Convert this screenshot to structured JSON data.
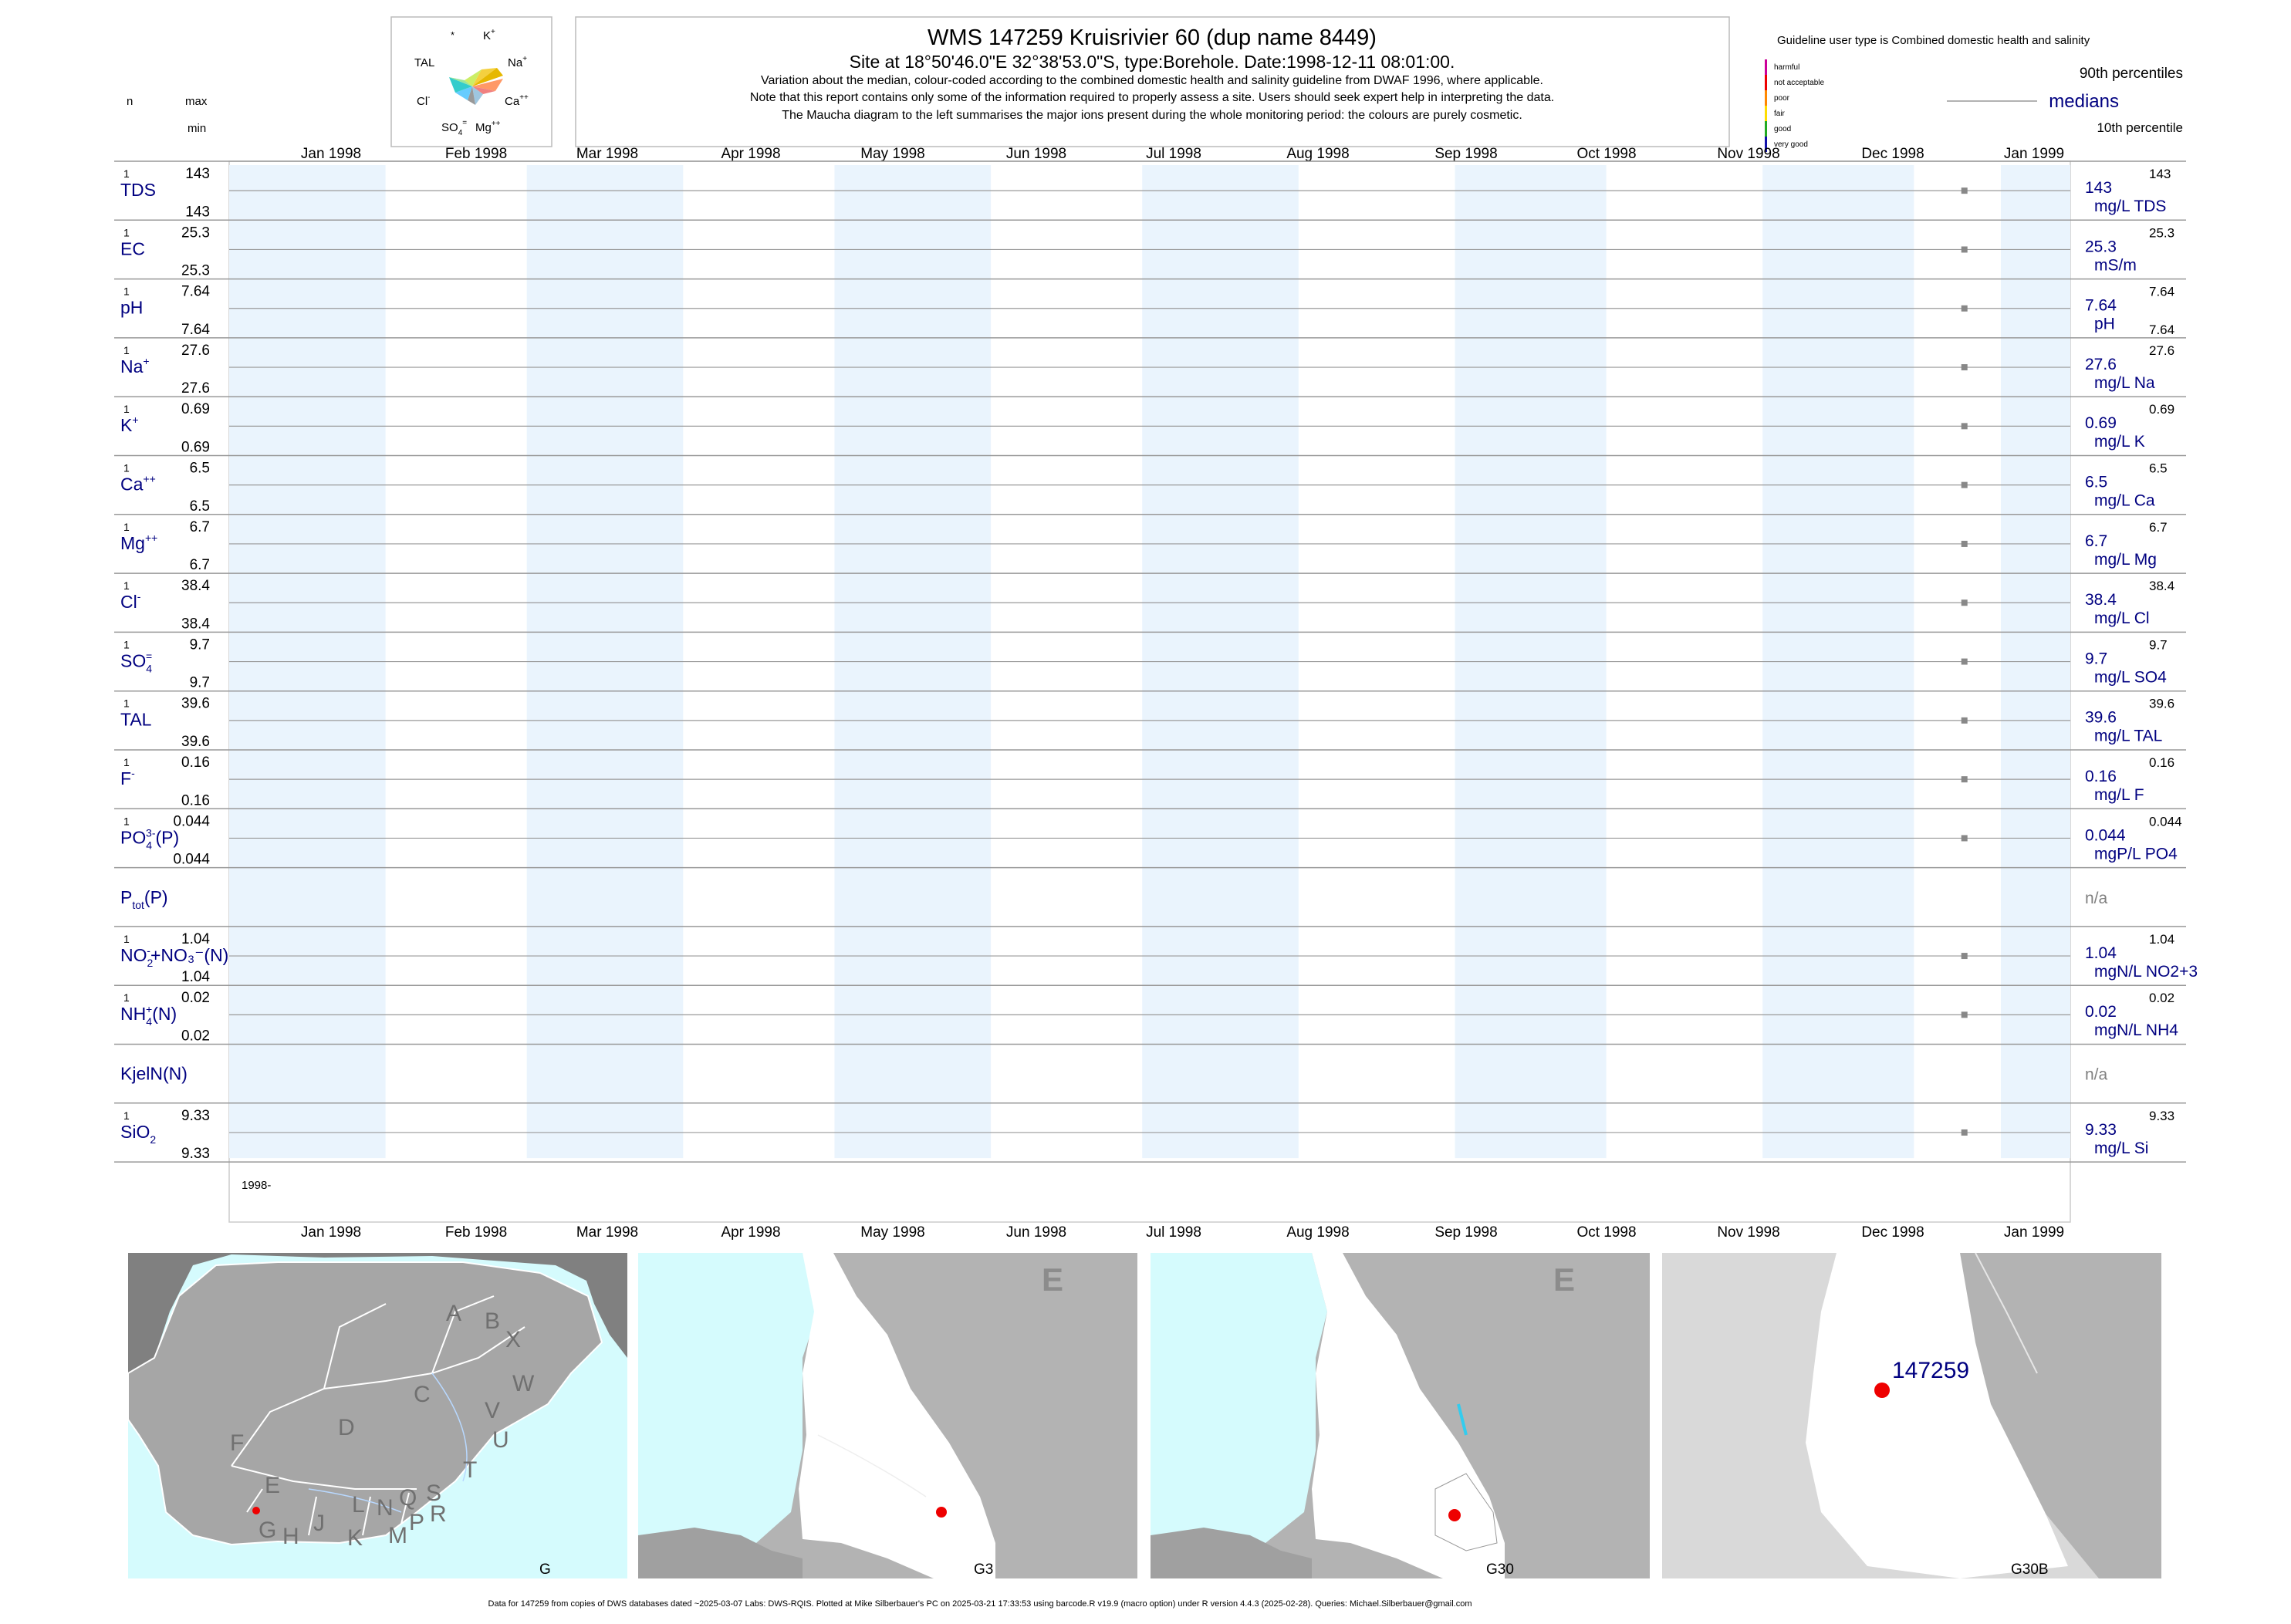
{
  "title": "WMS 147259  Kruisrivier 60 (dup name 8449)",
  "subtitle": "Site at 18°50'46.0\"E 32°38'53.0\"S, type:Borehole. Date:1998-12-11 08:01:00.",
  "notes": [
    "Variation about the median,  colour-coded according to the combined domestic health and salinity guideline from DWAF 1996, where applicable.",
    "Note that this report contains only some of the information required to properly assess a site. Users should seek expert help in interpreting the data.",
    "The Maucha diagram to the left summarises the major ions present during the whole monitoring period: the colours are purely cosmetic."
  ],
  "maucha_labels": {
    "star": "*",
    "k": "K",
    "na": "Na",
    "ca": "Ca",
    "mg": "Mg",
    "so4": "SO",
    "cl": "Cl",
    "tal": "TAL"
  },
  "header_labels": {
    "n": "n",
    "max": "max",
    "min": "min"
  },
  "guideline": {
    "title": "Guideline user type is Combined domestic health and salinity",
    "levels": [
      {
        "label": "harmful",
        "color": "#cc0099"
      },
      {
        "label": "not acceptable",
        "color": "#ee0000"
      },
      {
        "label": "poor",
        "color": "#ff8800"
      },
      {
        "label": "fair",
        "color": "#ffdd00"
      },
      {
        "label": "good",
        "color": "#22aa22"
      },
      {
        "label": "very good",
        "color": "#1111aa"
      }
    ],
    "p90": "90th percentiles",
    "medians": "medians",
    "p10": "10th percentile"
  },
  "months": [
    "Jan 1998",
    "Feb 1998",
    "Mar 1998",
    "Apr 1998",
    "May 1998",
    "Jun 1998",
    "Jul 1998",
    "Aug 1998",
    "Sep 1998",
    "Oct 1998",
    "Nov 1998",
    "Dec 1998",
    "Jan 1999"
  ],
  "chart_data": {
    "type": "scatter",
    "x_range": [
      "1998-01-01",
      "1999-01-01"
    ],
    "sample_date": "1998-12-11",
    "year_label": "1998-",
    "series": [
      {
        "key": "TDS",
        "label": "TDS",
        "sup": "",
        "sub": "",
        "n": "1",
        "max": "143",
        "min": "143",
        "median": "143",
        "p90": "143",
        "p10": "",
        "unit": "mg/L TDS",
        "value": 143
      },
      {
        "key": "EC",
        "label": "EC",
        "sup": "",
        "sub": "",
        "n": "1",
        "max": "25.3",
        "min": "25.3",
        "median": "25.3",
        "p90": "25.3",
        "p10": "",
        "unit": "mS/m",
        "value": 25.3
      },
      {
        "key": "pH",
        "label": "pH",
        "sup": "",
        "sub": "",
        "n": "1",
        "max": "7.64",
        "min": "7.64",
        "median": "7.64",
        "p90": "7.64",
        "p10": "7.64",
        "unit": "pH",
        "value": 7.64
      },
      {
        "key": "Na",
        "label": "Na",
        "sup": "+",
        "sub": "",
        "n": "1",
        "max": "27.6",
        "min": "27.6",
        "median": "27.6",
        "p90": "27.6",
        "p10": "",
        "unit": "mg/L Na",
        "value": 27.6
      },
      {
        "key": "K",
        "label": "K",
        "sup": "+",
        "sub": "",
        "n": "1",
        "max": "0.69",
        "min": "0.69",
        "median": "0.69",
        "p90": "0.69",
        "p10": "",
        "unit": "mg/L K",
        "value": 0.69
      },
      {
        "key": "Ca",
        "label": "Ca",
        "sup": "++",
        "sub": "",
        "n": "1",
        "max": "6.5",
        "min": "6.5",
        "median": "6.5",
        "p90": "6.5",
        "p10": "",
        "unit": "mg/L Ca",
        "value": 6.5
      },
      {
        "key": "Mg",
        "label": "Mg",
        "sup": "++",
        "sub": "",
        "n": "1",
        "max": "6.7",
        "min": "6.7",
        "median": "6.7",
        "p90": "6.7",
        "p10": "",
        "unit": "mg/L Mg",
        "value": 6.7
      },
      {
        "key": "Cl",
        "label": "Cl",
        "sup": "-",
        "sub": "",
        "n": "1",
        "max": "38.4",
        "min": "38.4",
        "median": "38.4",
        "p90": "38.4",
        "p10": "",
        "unit": "mg/L Cl",
        "value": 38.4
      },
      {
        "key": "SO4",
        "label": "SO",
        "sup": "=",
        "sub": "4",
        "n": "1",
        "max": "9.7",
        "min": "9.7",
        "median": "9.7",
        "p90": "9.7",
        "p10": "",
        "unit": "mg/L SO4",
        "value": 9.7
      },
      {
        "key": "TAL",
        "label": "TAL",
        "sup": "",
        "sub": "",
        "n": "1",
        "max": "39.6",
        "min": "39.6",
        "median": "39.6",
        "p90": "39.6",
        "p10": "",
        "unit": "mg/L TAL",
        "value": 39.6
      },
      {
        "key": "F",
        "label": "F",
        "sup": "-",
        "sub": "",
        "n": "1",
        "max": "0.16",
        "min": "0.16",
        "median": "0.16",
        "p90": "0.16",
        "p10": "",
        "unit": "mg/L F",
        "value": 0.16
      },
      {
        "key": "PO4",
        "label": "PO",
        "sup": "3-",
        "sub": "4",
        "tail": "(P)",
        "n": "1",
        "max": "0.044",
        "min": "0.044",
        "median": "0.044",
        "p90": "0.044",
        "p10": "",
        "unit": "mgP/L PO4",
        "value": 0.044
      },
      {
        "key": "Ptot",
        "label": "P",
        "sup": "",
        "sub": "tot",
        "tail": "(P)",
        "n": "",
        "max": "",
        "min": "",
        "median": "n/a",
        "p90": "",
        "p10": "",
        "unit": "",
        "value": null
      },
      {
        "key": "NO2NO3",
        "label": "NO",
        "sup": "-",
        "sub": "2",
        "tail": "+NO₃⁻(N)",
        "n": "1",
        "max": "1.04",
        "min": "1.04",
        "median": "1.04",
        "p90": "1.04",
        "p10": "",
        "unit": "mgN/L NO2+3",
        "value": 1.04
      },
      {
        "key": "NH4",
        "label": "NH",
        "sup": "+",
        "sub": "4",
        "tail": "(N)",
        "n": "1",
        "max": "0.02",
        "min": "0.02",
        "median": "0.02",
        "p90": "0.02",
        "p10": "",
        "unit": "mgN/L NH4",
        "value": 0.02
      },
      {
        "key": "KjelN",
        "label": "KjelN(N)",
        "sup": "",
        "sub": "",
        "n": "",
        "max": "",
        "min": "",
        "median": "n/a",
        "p90": "",
        "p10": "",
        "unit": "",
        "value": null
      },
      {
        "key": "SiO2",
        "label": "SiO",
        "sup": "",
        "sub": "2",
        "n": "1",
        "max": "9.33",
        "min": "9.33",
        "median": "9.33",
        "p90": "9.33",
        "p10": "",
        "unit": "mg/L Si",
        "value": 9.33
      }
    ]
  },
  "maps": [
    {
      "label": "G",
      "letters": [
        "A",
        "B",
        "X",
        "W",
        "C",
        "V",
        "U",
        "D",
        "T",
        "F",
        "E",
        "G",
        "H",
        "J",
        "K",
        "L",
        "N",
        "Q",
        "M",
        "P",
        "S",
        "R"
      ]
    },
    {
      "label": "G3",
      "corner": "E"
    },
    {
      "label": "G30",
      "corner": "E"
    },
    {
      "label": "G30B",
      "site": "147259"
    }
  ],
  "footer": "Data for 147259 from copies of DWS databases dated ~2025-03-07 Labs: DWS-RQIS. Plotted at Mike Silberbauer's PC on 2025-03-21 17:33:53 using barcode.R v19.9 (macro option) under R version 4.4.3 (2025-02-28). Queries: Michael.Silberbauer@gmail.com"
}
